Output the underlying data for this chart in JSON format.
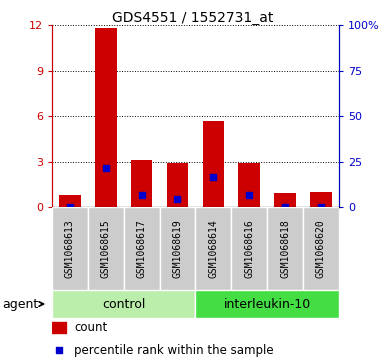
{
  "title": "GDS4551 / 1552731_at",
  "samples": [
    "GSM1068613",
    "GSM1068615",
    "GSM1068617",
    "GSM1068619",
    "GSM1068614",
    "GSM1068616",
    "GSM1068618",
    "GSM1068620"
  ],
  "counts": [
    0.8,
    11.8,
    3.1,
    2.9,
    5.7,
    2.9,
    0.9,
    1.0
  ],
  "percentiles": [
    0.0,
    2.6,
    0.8,
    0.5,
    2.0,
    0.8,
    0.0,
    0.0
  ],
  "groups": [
    {
      "label": "control",
      "start": 0,
      "end": 4,
      "color": "#bbeeaa"
    },
    {
      "label": "interleukin-10",
      "start": 4,
      "end": 8,
      "color": "#44dd44"
    }
  ],
  "group_label": "agent",
  "ylim_left": [
    0,
    12
  ],
  "yticks_left": [
    0,
    3,
    6,
    9,
    12
  ],
  "yticks_right": [
    0,
    25,
    50,
    75,
    100
  ],
  "ytick_labels_right": [
    "0",
    "25",
    "50",
    "75",
    "100%"
  ],
  "bar_color": "#cc0000",
  "percentile_color": "#0000cc",
  "bar_width": 0.6,
  "bg_plot": "#ffffff",
  "xticklabel_bg": "#cccccc",
  "legend_count_label": "count",
  "legend_percentile_label": "percentile rank within the sample",
  "left_tick_color": "#cc0000",
  "right_tick_color": "#0000cc",
  "title_fontsize": 10,
  "tick_fontsize": 8,
  "label_fontsize": 8.5,
  "group_fontsize": 9
}
